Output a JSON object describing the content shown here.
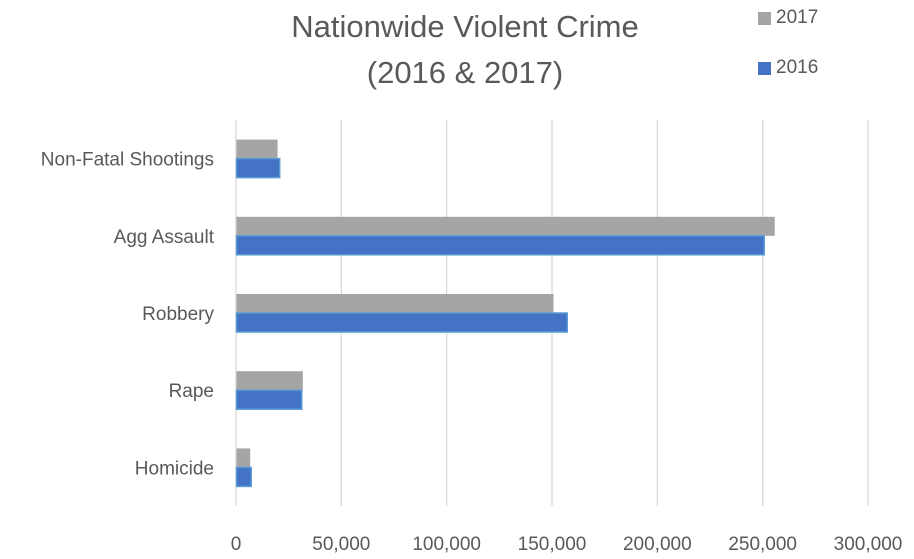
{
  "chart_data": {
    "type": "bar",
    "orientation": "horizontal",
    "title_line1": "Nationwide Violent Crime",
    "title_line2": "(2016 & 2017)",
    "categories": [
      "Non-Fatal Shootings",
      "Agg Assault",
      "Robbery",
      "Rape",
      "Homicide"
    ],
    "series": [
      {
        "name": "2017",
        "color": "#a5a5a5",
        "values": [
          19500,
          255500,
          150500,
          31500,
          6500
        ]
      },
      {
        "name": "2016",
        "color": "#4472c4",
        "values": [
          20500,
          250500,
          157000,
          31000,
          7000
        ]
      }
    ],
    "xlim": [
      0,
      300000
    ],
    "x_ticks": [
      0,
      50000,
      100000,
      150000,
      200000,
      250000,
      300000
    ],
    "x_tick_labels": [
      "0",
      "50,000",
      "100,000",
      "150,000",
      "200,000",
      "250,000",
      "300,000"
    ],
    "legend_position": "top-right",
    "grid": "vertical"
  }
}
